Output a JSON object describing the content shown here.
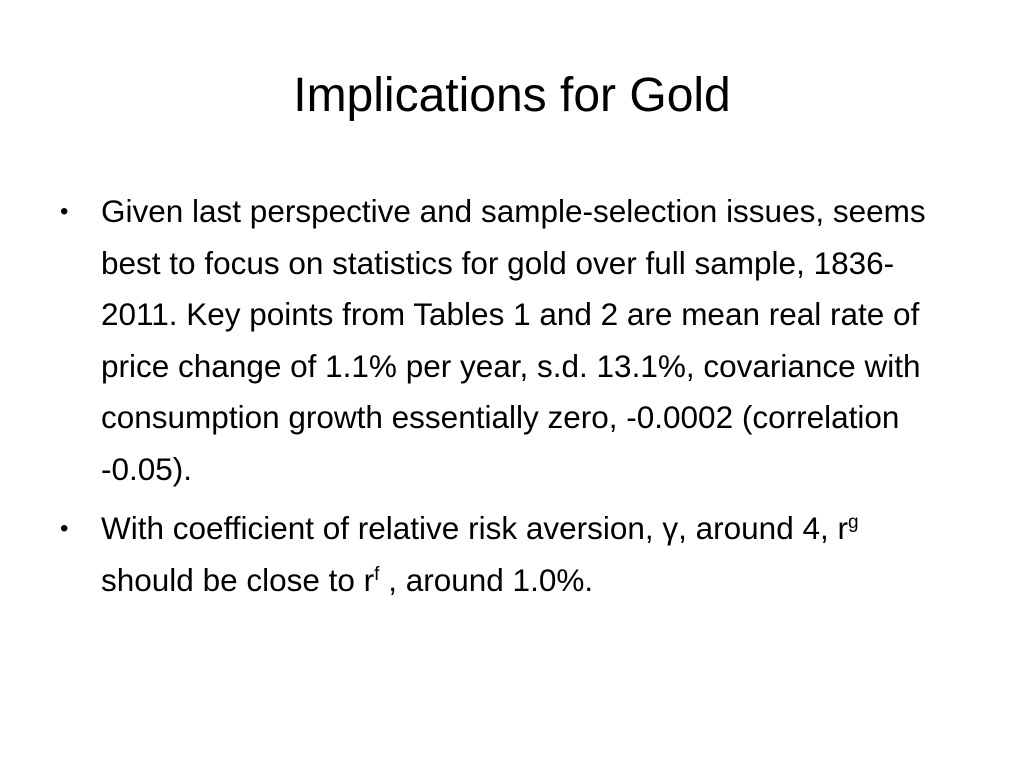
{
  "slide": {
    "title": "Implications for Gold",
    "bullets": [
      {
        "text": "Given last perspective and sample-selection issues, seems best to focus on statistics for gold over full sample, 1836-2011.  Key points from Tables 1 and 2 are mean real rate of price change of 1.1% per year, s.d. 13.1%, covariance with consumption growth essentially zero, -0.0002 (correlation -0.05)."
      },
      {
        "part1": "With coefficient of relative risk aversion, γ, around 4, r",
        "sup1": "g",
        "part2": " should be close to r",
        "sup2": "f",
        "part3": " , around 1.0%."
      }
    ],
    "bullet_symbol": "•"
  }
}
